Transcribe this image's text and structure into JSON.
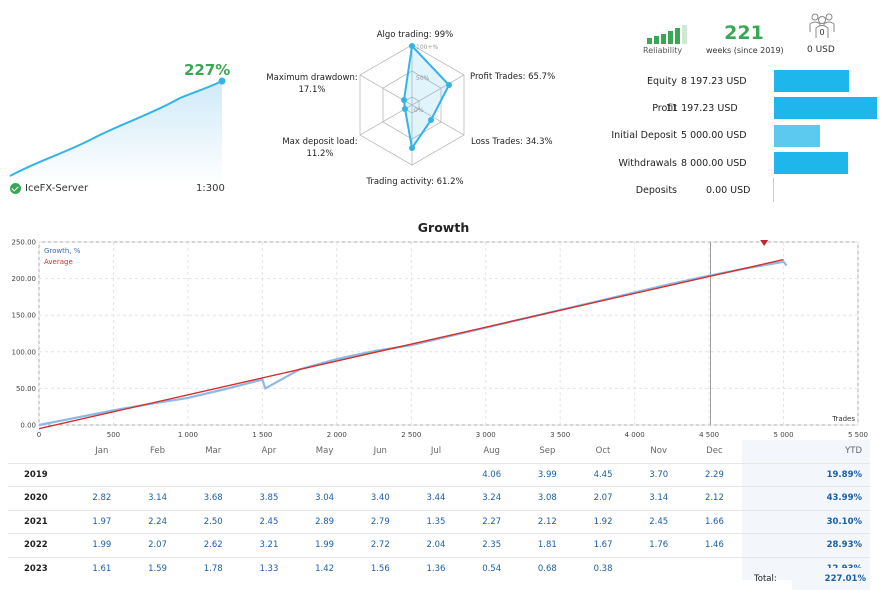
{
  "summary": {
    "growth_pct": "227%",
    "server": "IceFX-Server",
    "leverage": "1:300"
  },
  "radar": {
    "algo": "Algo trading: 99%",
    "profit_trades": "Profit Trades: 65.7%",
    "loss_trades": "Loss Trades: 34.3%",
    "activity": "Trading activity: 61.2%",
    "deposit_load_line1": "Max deposit load:",
    "deposit_load_line2": "11.2%",
    "drawdown_line1": "Maximum drawdown:",
    "drawdown_line2": "17.1%",
    "ring_100": "100+%",
    "ring_50": "50%",
    "ring_0": "0%",
    "values": {
      "algo": 99,
      "profit": 65.7,
      "loss": 34.3,
      "activity": 61.2,
      "deposit_load": 11.2,
      "drawdown": 17.1
    }
  },
  "header_stats": {
    "reliability_label": "Reliability",
    "weeks": "221",
    "weeks_label": "weeks (since 2019)",
    "subscribers_count": "0",
    "subscribers_value": "0 USD"
  },
  "stats": [
    {
      "label": "Equity",
      "value": "8 197.23 USD",
      "fill": 0.73
    },
    {
      "label": "Profit",
      "value": "11 197.23 USD",
      "fill": 1.0
    },
    {
      "label": "Initial Deposit",
      "value": "5 000.00 USD",
      "fill": 0.45
    },
    {
      "label": "Withdrawals",
      "value": "8 000.00 USD",
      "fill": 0.72
    },
    {
      "label": "Deposits",
      "value": "0.00 USD",
      "fill": 0
    }
  ],
  "chart_data": {
    "type": "line",
    "title": "Growth",
    "legend": [
      "Growth, %",
      "Average"
    ],
    "xlabel": "Trades",
    "xlim": [
      0,
      5500
    ],
    "ylim": [
      0,
      250
    ],
    "x_ticks": [
      "0",
      "500",
      "1 000",
      "1 500",
      "2 000",
      "2 500",
      "3 000",
      "3 500",
      "4 000",
      "4 500",
      "5 000",
      "5 500"
    ],
    "y_ticks": [
      "0.00",
      "50.00",
      "100.00",
      "150.00",
      "200.00",
      "250.00"
    ],
    "series": [
      {
        "name": "Growth, %",
        "x": [
          0,
          250,
          500,
          750,
          1000,
          1250,
          1500,
          1520,
          1750,
          2000,
          2250,
          2500,
          2750,
          3000,
          3250,
          3500,
          3750,
          4000,
          4250,
          4500,
          4750,
          5000,
          5020
        ],
        "y": [
          0,
          10,
          20,
          29,
          37,
          49,
          62,
          50,
          76,
          90,
          101,
          109,
          121,
          133,
          145,
          157,
          169,
          181,
          193,
          204,
          214,
          223,
          218
        ]
      },
      {
        "name": "Average",
        "x": [
          0,
          5000
        ],
        "y": [
          -5,
          226
        ]
      }
    ],
    "divider_x": 4510
  },
  "monthly": {
    "months": [
      "Jan",
      "Feb",
      "Mar",
      "Apr",
      "May",
      "Jun",
      "Jul",
      "Aug",
      "Sep",
      "Oct",
      "Nov",
      "Dec"
    ],
    "ytd_header": "YTD",
    "rows": [
      {
        "year": "2019",
        "values": [
          "",
          "",
          "",
          "",
          "",
          "",
          "",
          "4.06",
          "3.99",
          "4.45",
          "3.70",
          "2.29"
        ],
        "ytd": "19.89%"
      },
      {
        "year": "2020",
        "values": [
          "2.82",
          "3.14",
          "3.68",
          "3.85",
          "3.04",
          "3.40",
          "3.44",
          "3.24",
          "3.08",
          "2.07",
          "3.14",
          "2.12"
        ],
        "ytd": "43.99%"
      },
      {
        "year": "2021",
        "values": [
          "1.97",
          "2.24",
          "2.50",
          "2.45",
          "2.89",
          "2.79",
          "1.35",
          "2.27",
          "2.12",
          "1.92",
          "2.45",
          "1.66"
        ],
        "ytd": "30.10%"
      },
      {
        "year": "2022",
        "values": [
          "1.99",
          "2.07",
          "2.62",
          "3.21",
          "1.99",
          "2.72",
          "2.04",
          "2.35",
          "1.81",
          "1.67",
          "1.76",
          "1.46"
        ],
        "ytd": "28.93%"
      },
      {
        "year": "2023",
        "values": [
          "1.61",
          "1.59",
          "1.78",
          "1.33",
          "1.42",
          "1.56",
          "1.36",
          "0.54",
          "0.68",
          "0.38",
          "",
          ""
        ],
        "ytd": "12.93%"
      }
    ],
    "total_label": "Total:",
    "total_value": "227.01%"
  },
  "colors": {
    "accent_green": "#3aa757",
    "bar_blue": "#1fb6ec",
    "bar_light": "#5cc9ef",
    "growth_line": "#8fb8e6",
    "average_line": "#d0312d"
  }
}
